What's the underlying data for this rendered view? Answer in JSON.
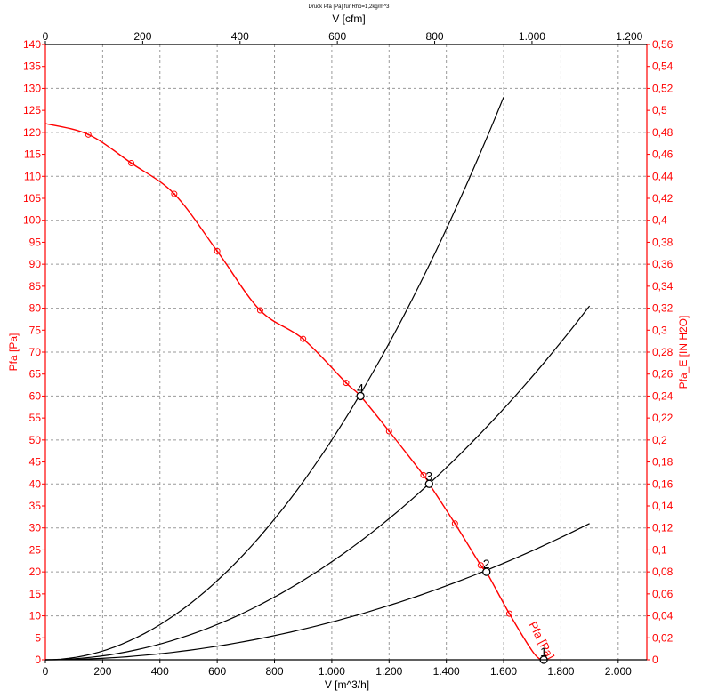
{
  "chart_data": {
    "type": "line",
    "title": "Druck Pfa [Pa] für Rho=1,2kg/m^3",
    "xlabel": "V [m^3/h]",
    "x2label": "V [cfm]",
    "ylabel": "Pfa [Pa]",
    "y2label": "Pfa_E [IN H2O]",
    "xlim": [
      0,
      2100
    ],
    "ylim": [
      0,
      140
    ],
    "x2lim": [
      0,
      1236
    ],
    "y2lim": [
      0,
      0.56
    ],
    "x_ticks": [
      0,
      200,
      400,
      600,
      800,
      1000,
      1200,
      1400,
      1600,
      1800,
      2000
    ],
    "x_tick_labels": [
      "0",
      "200",
      "400",
      "600",
      "800",
      "1.000",
      "1.200",
      "1.400",
      "1.600",
      "1.800",
      "2.000"
    ],
    "x2_ticks": [
      0,
      200,
      400,
      600,
      800,
      1000,
      1200
    ],
    "x2_tick_labels": [
      "0",
      "200",
      "400",
      "600",
      "800",
      "1.000",
      "1.200"
    ],
    "y_ticks": [
      0,
      5,
      10,
      15,
      20,
      25,
      30,
      35,
      40,
      45,
      50,
      55,
      60,
      65,
      70,
      75,
      80,
      85,
      90,
      95,
      100,
      105,
      110,
      115,
      120,
      125,
      130,
      135,
      140
    ],
    "y2_ticks": [
      0,
      0.02,
      0.04,
      0.06,
      0.08,
      0.1,
      0.12,
      0.14,
      0.16,
      0.18,
      0.2,
      0.22,
      0.24,
      0.26,
      0.28,
      0.3,
      0.32,
      0.34,
      0.36,
      0.38,
      0.4,
      0.42,
      0.44,
      0.46,
      0.48,
      0.5,
      0.52,
      0.54,
      0.56
    ],
    "y2_tick_labels": [
      "0",
      "0,02",
      "0,04",
      "0,06",
      "0,08",
      "0,1",
      "0,12",
      "0,14",
      "0,16",
      "0,18",
      "0,2",
      "0,22",
      "0,24",
      "0,26",
      "0,28",
      "0,3",
      "0,32",
      "0,34",
      "0,36",
      "0,38",
      "0,4",
      "0,42",
      "0,44",
      "0,46",
      "0,48",
      "0,5",
      "0,52",
      "0,54",
      "0,56"
    ],
    "grid": true,
    "fan_curve": {
      "name": "Pfa [Pa]",
      "color": "#ff0000",
      "x": [
        0,
        150,
        300,
        450,
        600,
        750,
        900,
        1050,
        1100,
        1200,
        1320,
        1340,
        1430,
        1520,
        1540,
        1620,
        1700,
        1730
      ],
      "y": [
        122,
        119.5,
        113,
        106,
        93,
        79.5,
        73,
        63,
        60,
        52,
        42,
        40,
        31,
        21.5,
        20,
        10.5,
        2,
        0
      ],
      "markers_x": [
        150,
        300,
        450,
        600,
        750,
        900,
        1050,
        1200,
        1320,
        1430,
        1520,
        1620
      ],
      "markers_y": [
        119.5,
        113,
        106,
        93,
        79.5,
        73,
        63,
        52,
        42,
        31,
        21.5,
        10.5
      ]
    },
    "system_curves": [
      {
        "color": "#000000",
        "x": [
          0,
          1900
        ],
        "y": [
          0,
          31
        ]
      },
      {
        "color": "#000000",
        "x": [
          0,
          1900
        ],
        "y": [
          0,
          80.5
        ]
      },
      {
        "color": "#000000",
        "x": [
          0,
          1600
        ],
        "y": [
          0,
          128
        ]
      }
    ],
    "operating_points": [
      {
        "label": "1",
        "x": 1740,
        "y": 0
      },
      {
        "label": "2",
        "x": 1540,
        "y": 20
      },
      {
        "label": "3",
        "x": 1340,
        "y": 40
      },
      {
        "label": "4",
        "x": 1100,
        "y": 60
      }
    ],
    "colors": {
      "primary": "#ff0000",
      "secondary": "#000000",
      "grid": "#9a9a9a"
    }
  }
}
